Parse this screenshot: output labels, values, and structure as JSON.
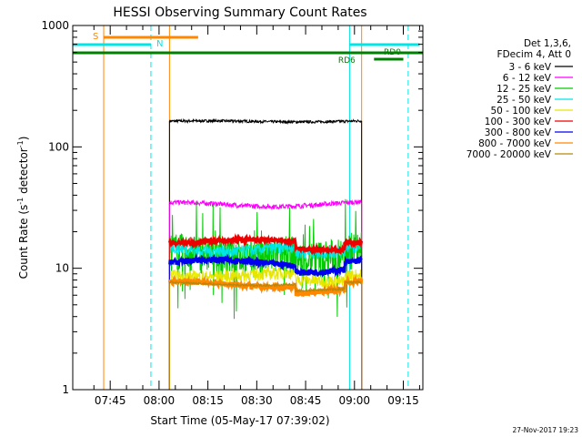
{
  "chart_data": {
    "type": "line",
    "title": "HESSI Observing Summary Count Rates",
    "xlabel": "Start Time (05-May-17 07:39:02)",
    "ylabel_main": "Count Rate (s",
    "ylabel_sup1": "-1",
    "ylabel_mid": " detector",
    "ylabel_sup2": "-1",
    "ylabel_end": ")",
    "ylog": true,
    "ylim": [
      1,
      1000
    ],
    "xlim_minutes": [
      -5.5,
      102
    ],
    "x_unit": "minutes after 07:39:02",
    "yticks": [
      {
        "v": 1,
        "label": "1"
      },
      {
        "v": 10,
        "label": "10"
      },
      {
        "v": 100,
        "label": "100"
      },
      {
        "v": 1000,
        "label": "1000"
      }
    ],
    "xticks": [
      {
        "m": 6,
        "label": "07:45"
      },
      {
        "m": 21,
        "label": "08:00"
      },
      {
        "m": 36,
        "label": "08:15"
      },
      {
        "m": 51,
        "label": "08:30"
      },
      {
        "m": 66,
        "label": "08:45"
      },
      {
        "m": 81,
        "label": "09:00"
      },
      {
        "m": 96,
        "label": "09:15"
      }
    ],
    "legend_header": [
      "Det 1,3,6,",
      "FDecim 4, Att 0"
    ],
    "data_window_minutes": [
      24.2,
      83.2
    ],
    "series": [
      {
        "name": "3 - 6 keV",
        "color": "#000000",
        "level": 163,
        "noise": 0.025,
        "amp": 0.01,
        "width": 1
      },
      {
        "name": "6 - 12 keV",
        "color": "#ff00ff",
        "level": 34,
        "noise": 0.045,
        "amp": 0.03,
        "width": 1
      },
      {
        "name": "12 - 25 keV",
        "color": "#00cc00",
        "level": 14,
        "noise": 0.35,
        "amp": 0.05,
        "width": 1
      },
      {
        "name": "25 - 50 keV",
        "color": "#00e5e5",
        "level": 15,
        "noise": 0.12,
        "amp": 0.05,
        "width": 1
      },
      {
        "name": "50 - 100 keV",
        "color": "#e6e600",
        "level": 9,
        "noise": 0.12,
        "amp": 0.04,
        "width": 1
      },
      {
        "name": "100 - 300 keV",
        "color": "#ee0000",
        "level": 17,
        "noise": 0.035,
        "amp": 0.05,
        "width": 3
      },
      {
        "name": "300 - 800 keV",
        "color": "#0000ee",
        "level": 11.5,
        "noise": 0.06,
        "amp": 0.06,
        "width": 2.5
      },
      {
        "name": "800 - 7000 keV",
        "color": "#ff8800",
        "level": 7.5,
        "noise": 0.05,
        "amp": 0.04,
        "width": 3
      },
      {
        "name": "7000 - 20000 keV",
        "color": "#b8860b",
        "level": 7.5,
        "noise": 0.02,
        "amp": 0.02,
        "width": 1
      }
    ],
    "annotations": {
      "saa": {
        "label": "S",
        "color": "#ff8800",
        "start": 4,
        "end": 33
      },
      "night": {
        "label": "N",
        "color": "#00e5e5",
        "start": -5.5,
        "end": 18.5
      },
      "night2": {
        "color": "#00e5e5",
        "start": 79.5,
        "end": 101
      },
      "rd0": {
        "label": "RD0",
        "color": "#008000",
        "start": -5.5,
        "end": 102
      },
      "rd6": {
        "label": "RD6",
        "color": "#008000",
        "start": 87,
        "end": 96
      }
    },
    "vlines": [
      {
        "m": -5.5,
        "color": "#00e5e5",
        "dash": false
      },
      {
        "m": 4,
        "color": "#ff8800",
        "dash": false
      },
      {
        "m": 18.5,
        "color": "#00e5e5",
        "dash": true
      },
      {
        "m": 24.2,
        "color": "#ff8800",
        "dash": false
      },
      {
        "m": 79.5,
        "color": "#00e5e5",
        "dash": false
      },
      {
        "m": 83.2,
        "color": "#ff8800",
        "dash": false
      },
      {
        "m": 97.5,
        "color": "#00e5e5",
        "dash": true
      }
    ]
  },
  "footer": {
    "timestamp": "27-Nov-2017 19:23"
  }
}
